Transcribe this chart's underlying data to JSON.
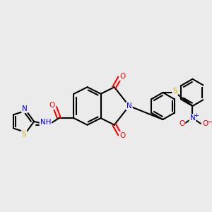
{
  "bg_color": "#ebebeb",
  "bond_color": "#000000",
  "atom_colors": {
    "O": "#ff0000",
    "N": "#0000ff",
    "S": "#ccaa00",
    "S_thioether": "#ccaa00",
    "H": "#7fbfbf",
    "C": "#000000",
    "plus": "#0000ff",
    "minus": "#ff0000"
  },
  "figsize": [
    3.0,
    3.0
  ],
  "dpi": 100
}
